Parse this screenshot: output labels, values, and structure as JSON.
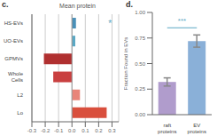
{
  "chart_data": [
    {
      "type": "bar",
      "title": "c.",
      "xlabel": "Mean protein",
      "orientation": "horizontal",
      "categories": [
        "Lo",
        "L2",
        "Whole\nCells",
        "GPMVs",
        "UO-EVs",
        "HS-EVs"
      ],
      "values": [
        0.26,
        0.06,
        -0.14,
        -0.21,
        0.025,
        0.03
      ],
      "colors": [
        "#d94f3d",
        "#e8857a",
        "#c94040",
        "#b03030",
        "#5ba8c4",
        "#4a90b8"
      ],
      "xlim": [
        -0.3,
        0.35
      ],
      "xticks": [
        -0.3,
        -0.2,
        -0.1,
        {
          "value": 0,
          "label": "0.0"
        },
        0.1,
        0.2,
        0.3
      ],
      "grid": true,
      "annotations": [
        {
          "text": "*",
          "x": 0.285,
          "y": "HS-EVs"
        }
      ]
    },
    {
      "type": "bar",
      "title": "d.",
      "ylabel": "Fraction Found in EVs",
      "categories": [
        "raft\nproteins",
        "EV\nproteins"
      ],
      "values": [
        0.32,
        0.72
      ],
      "errors": [
        0.04,
        0.06
      ],
      "colors": [
        "#b09ccc",
        "#8ab0d8"
      ],
      "ylim": [
        0.0,
        1.0
      ],
      "yticks": [
        {
          "value": 0,
          "label": "0.00"
        },
        0.25,
        {
          "value": 0.5,
          "label": "0.50"
        },
        0.75,
        {
          "value": 1.0,
          "label": "1.00"
        }
      ],
      "grid": false,
      "annotations": [
        {
          "text": "***",
          "y": 0.85,
          "from": "raft\nproteins",
          "to": "EV\nproteins"
        }
      ]
    }
  ]
}
